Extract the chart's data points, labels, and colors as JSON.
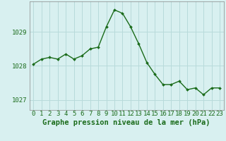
{
  "hours": [
    0,
    1,
    2,
    3,
    4,
    5,
    6,
    7,
    8,
    9,
    10,
    11,
    12,
    13,
    14,
    15,
    16,
    17,
    18,
    19,
    20,
    21,
    22,
    23
  ],
  "pressure": [
    1028.05,
    1028.2,
    1028.25,
    1028.2,
    1028.35,
    1028.2,
    1028.3,
    1028.5,
    1028.55,
    1029.15,
    1029.65,
    1029.55,
    1029.15,
    1028.65,
    1028.1,
    1027.75,
    1027.45,
    1027.45,
    1027.55,
    1027.3,
    1027.35,
    1027.15,
    1027.35,
    1027.35
  ],
  "line_color": "#1a6b1a",
  "marker_color": "#1a6b1a",
  "bg_color": "#d8f0f0",
  "grid_color": "#b8dada",
  "axis_color": "#1a6b1a",
  "xlabel": "Graphe pression niveau de la mer (hPa)",
  "xlabel_fontsize": 7.5,
  "tick_fontsize": 6.5,
  "yticks": [
    1027,
    1028,
    1029
  ],
  "ylim": [
    1026.7,
    1029.9
  ],
  "xlim": [
    -0.5,
    23.5
  ]
}
